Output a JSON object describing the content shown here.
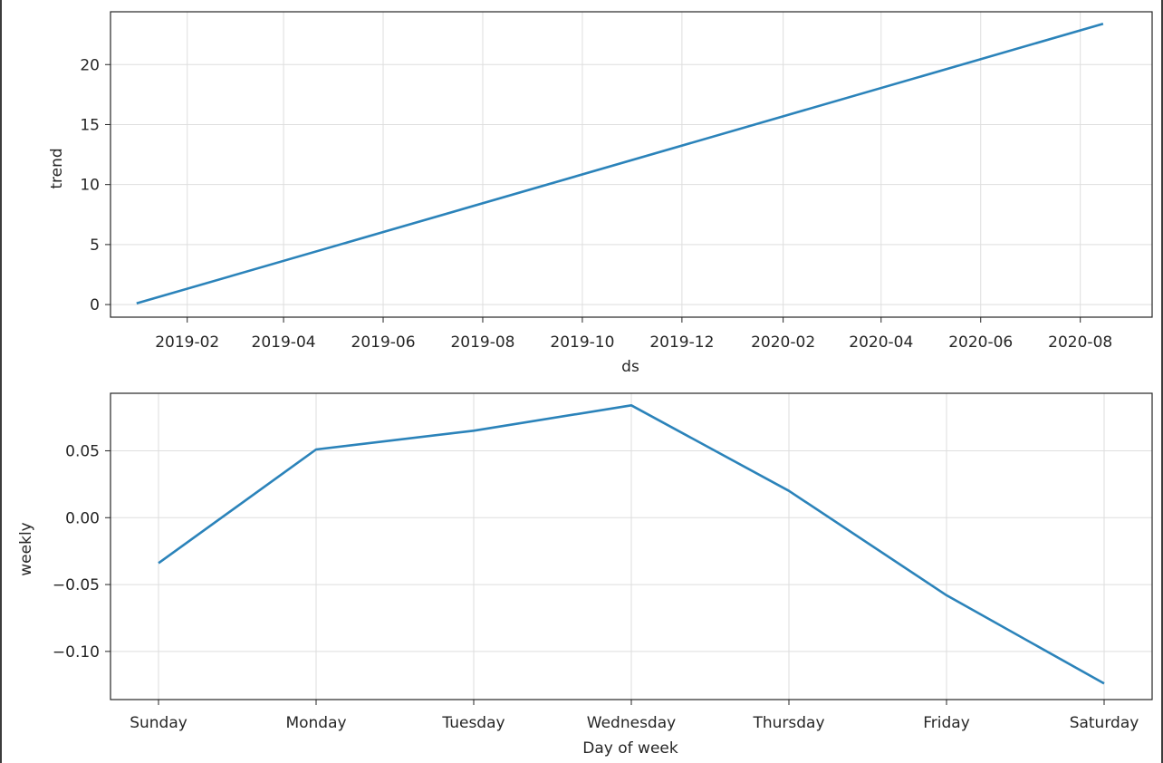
{
  "chart_data": [
    {
      "type": "line",
      "xlabel": "ds",
      "ylabel": "trend",
      "x_type": "date",
      "xlim": [
        "2018-12-16",
        "2020-09-14"
      ],
      "ylim": [
        -1.05,
        24.4
      ],
      "x_ticks": [
        "2019-02",
        "2019-04",
        "2019-06",
        "2019-08",
        "2019-10",
        "2019-12",
        "2020-02",
        "2020-04",
        "2020-06",
        "2020-08"
      ],
      "y_ticks": [
        0,
        5,
        10,
        15,
        20
      ],
      "grid": true,
      "series": [
        {
          "x": [
            "2019-01-01",
            "2020-08-15"
          ],
          "values": [
            0.1,
            23.4
          ]
        }
      ],
      "color": "#2b83ba"
    },
    {
      "type": "line",
      "xlabel": "Day of week",
      "ylabel": "weekly",
      "categories": [
        "Sunday",
        "Monday",
        "Tuesday",
        "Wednesday",
        "Thursday",
        "Friday",
        "Saturday"
      ],
      "ylim": [
        -0.136,
        0.093
      ],
      "y_ticks": [
        "0.05",
        "0.00",
        "−0.05",
        "−0.10"
      ],
      "y_tick_values": [
        0.05,
        0.0,
        -0.05,
        -0.1
      ],
      "grid": true,
      "series": [
        {
          "values": [
            -0.034,
            0.051,
            0.065,
            0.084,
            0.02,
            -0.058,
            -0.124
          ]
        }
      ],
      "color": "#2b83ba"
    }
  ]
}
